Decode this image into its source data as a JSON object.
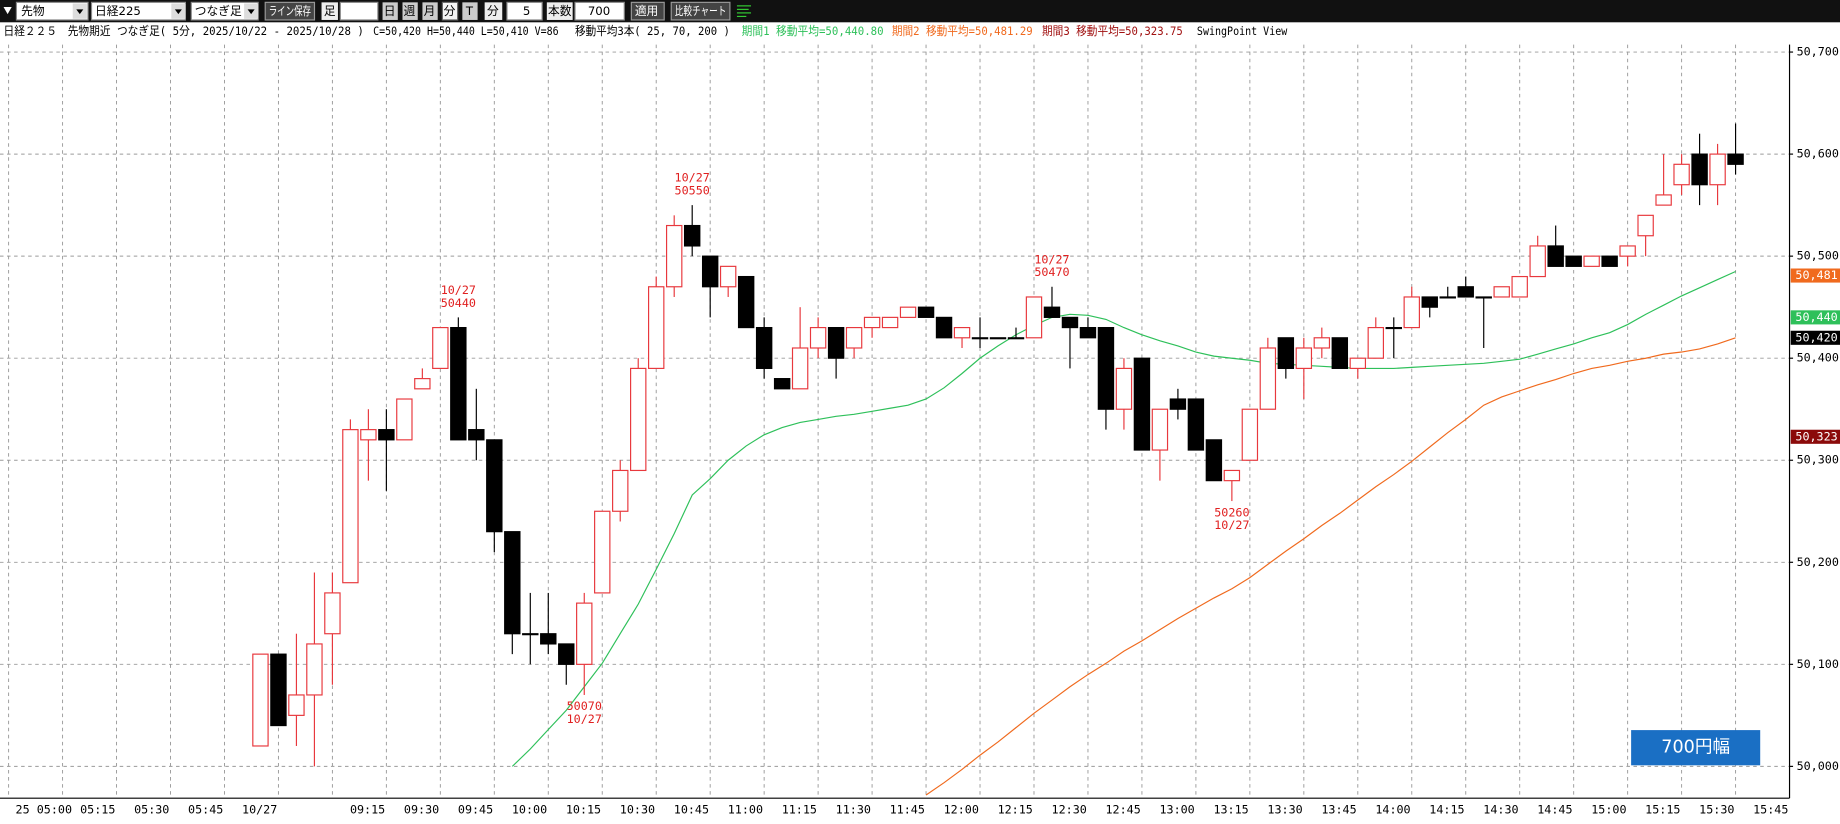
{
  "toolbar": {
    "market": "先物",
    "symbol": "日経225",
    "chart_kind": "つなぎ足",
    "save_lines": "ライン保存",
    "bar_label": "足",
    "periods": [
      "日",
      "週",
      "月",
      "分",
      "T"
    ],
    "unit": "分",
    "interval": "5",
    "count_label": "本数",
    "count": "700",
    "apply": "適用",
    "compare": "比較チャート"
  },
  "chart_data": {
    "type": "candlestick",
    "title": "日経２２５　先物期近 つなぎ足( 5分, 2025/10/22 - 2025/10/28 )",
    "subtitle": "C=50,420 H=50,440 L=50,410 V=86",
    "ma_label": "移動平均3本( 25, 70, 200 )",
    "view_label": "SwingPoint View",
    "badge": "700円幅",
    "categories": [
      null,
      null,
      null,
      "25 05:00",
      null,
      null,
      "05:15",
      null,
      null,
      "05:30",
      null,
      null,
      "05:45",
      null,
      null,
      "10/27",
      null,
      null,
      null,
      null,
      null,
      "09:15",
      null,
      null,
      "09:30",
      null,
      null,
      "09:45",
      null,
      null,
      "10:00",
      null,
      null,
      "10:15",
      null,
      null,
      "10:30",
      null,
      null,
      "10:45",
      null,
      null,
      "11:00",
      null,
      null,
      "11:15",
      null,
      null,
      "11:30",
      null,
      null,
      "11:45",
      null,
      null,
      "12:00",
      null,
      null,
      "12:15",
      null,
      null,
      "12:30",
      null,
      null,
      "12:45",
      null,
      null,
      "13:00",
      null,
      null,
      "13:15",
      null,
      null,
      "13:30",
      null,
      null,
      "13:45",
      null,
      null,
      "14:00",
      null,
      null,
      "14:15",
      null,
      null,
      "14:30",
      null,
      null,
      "14:45",
      null,
      null,
      "15:00",
      null,
      null,
      "15:15",
      null,
      null,
      "15:30",
      null,
      null,
      "15:45"
    ],
    "open": [
      null,
      null,
      null,
      null,
      null,
      null,
      null,
      null,
      null,
      null,
      null,
      null,
      null,
      null,
      50020,
      50110,
      50050,
      50070,
      50130,
      50180,
      50320,
      50330,
      50320,
      50370,
      50390,
      50430,
      50330,
      50320,
      50230,
      50130,
      50130,
      50120,
      50100,
      50170,
      50250,
      50290,
      50390,
      50470,
      50530,
      50500,
      50470,
      50480,
      50430,
      50380,
      50370,
      50410,
      50430,
      50410,
      50430,
      50430,
      50440,
      50450,
      50440,
      50420,
      50420,
      50420,
      50420,
      50420,
      50450,
      50440,
      50430,
      50430,
      50350,
      50400,
      50310,
      50360,
      50360,
      50320,
      50280,
      50300,
      50350,
      50420,
      50390,
      50410,
      50420,
      50390,
      50400,
      50430,
      50430,
      50460,
      50460,
      50470,
      50460,
      50460,
      50460,
      50480,
      50510,
      50500,
      50490,
      50500,
      50500,
      50520,
      50550,
      50570,
      50600,
      50570,
      50600,
      null,
      null,
      null
    ],
    "high": [
      null,
      null,
      null,
      null,
      null,
      null,
      null,
      null,
      null,
      null,
      null,
      null,
      null,
      null,
      50110,
      50110,
      50130,
      50190,
      50190,
      50340,
      50350,
      50350,
      50360,
      50390,
      50430,
      50440,
      50370,
      50320,
      50230,
      50170,
      50170,
      50120,
      50170,
      50250,
      50300,
      50400,
      50480,
      50540,
      50550,
      50500,
      50490,
      50480,
      50440,
      50380,
      50450,
      50440,
      50430,
      50430,
      50440,
      50440,
      50450,
      50450,
      50440,
      50430,
      50440,
      50420,
      50430,
      50460,
      50470,
      50440,
      50440,
      50430,
      50400,
      50400,
      50350,
      50370,
      50360,
      50320,
      50290,
      50350,
      50420,
      50420,
      50420,
      50430,
      50420,
      50400,
      50440,
      50440,
      50470,
      50460,
      50470,
      50480,
      50460,
      50470,
      50480,
      50520,
      50530,
      50500,
      50500,
      50500,
      50510,
      50540,
      50600,
      50600,
      50620,
      50610,
      50630,
      null,
      null,
      null
    ],
    "low": [
      null,
      null,
      null,
      null,
      null,
      null,
      null,
      null,
      null,
      null,
      null,
      null,
      null,
      null,
      50020,
      50040,
      50020,
      50000,
      50080,
      50180,
      50280,
      50270,
      50320,
      50370,
      50390,
      50320,
      50300,
      50210,
      50110,
      50100,
      50110,
      50080,
      50070,
      50170,
      50240,
      50290,
      50390,
      50460,
      50500,
      50440,
      50460,
      50430,
      50380,
      50370,
      50370,
      50400,
      50380,
      50400,
      50420,
      50430,
      50440,
      50440,
      50420,
      50410,
      50410,
      50420,
      50420,
      50420,
      50440,
      50390,
      50420,
      50330,
      50330,
      50310,
      50280,
      50340,
      50310,
      50280,
      50260,
      50300,
      50350,
      50380,
      50360,
      50400,
      50390,
      50380,
      50400,
      50400,
      50430,
      50440,
      50460,
      50460,
      50410,
      50460,
      50460,
      50480,
      50490,
      50490,
      50490,
      50490,
      50490,
      50500,
      50550,
      50560,
      50550,
      50550,
      50580,
      null,
      null,
      null
    ],
    "close": [
      null,
      null,
      null,
      null,
      null,
      null,
      null,
      null,
      null,
      null,
      null,
      null,
      null,
      null,
      50110,
      50040,
      50070,
      50120,
      50170,
      50330,
      50330,
      50320,
      50360,
      50380,
      50430,
      50320,
      50320,
      50230,
      50130,
      50130,
      50120,
      50100,
      50160,
      50250,
      50290,
      50390,
      50470,
      50530,
      50510,
      50470,
      50490,
      50430,
      50390,
      50370,
      50410,
      50430,
      50400,
      50430,
      50440,
      50440,
      50450,
      50440,
      50420,
      50430,
      50420,
      50420,
      50420,
      50460,
      50440,
      50430,
      50420,
      50350,
      50390,
      50310,
      50350,
      50350,
      50310,
      50280,
      50290,
      50350,
      50410,
      50390,
      50410,
      50420,
      50390,
      50400,
      50430,
      50430,
      50460,
      50450,
      50460,
      50460,
      50460,
      50470,
      50480,
      50510,
      50490,
      50490,
      50500,
      50490,
      50510,
      50540,
      50560,
      50590,
      50570,
      50600,
      50590,
      null,
      null,
      null
    ],
    "up_color": "#e8383d",
    "down_color": "#000000",
    "series": [
      {
        "name": "期間1 移動平均=50,440.80",
        "color": "#2ec05a",
        "values": [
          null,
          null,
          null,
          null,
          null,
          null,
          null,
          null,
          null,
          null,
          null,
          null,
          null,
          null,
          null,
          null,
          null,
          null,
          null,
          null,
          null,
          null,
          null,
          null,
          null,
          null,
          null,
          null,
          50000,
          50017,
          50036,
          50055,
          50078,
          50101,
          50130,
          50159,
          50193,
          50228,
          50266,
          50282,
          50300,
          50314,
          50325,
          50332,
          50337,
          50340,
          50343,
          50345,
          50348,
          50351,
          50354,
          50360,
          50371,
          50385,
          50400,
          50412,
          50423,
          50432,
          50440,
          50443,
          50442,
          50438,
          50430,
          50423,
          50417,
          50412,
          50406,
          50402,
          50400,
          50398,
          50395,
          50394,
          50393,
          50392,
          50391,
          50390,
          50390,
          50390,
          50391,
          50392,
          50393,
          50394,
          50395,
          50397,
          50399,
          50404,
          50409,
          50414,
          50420,
          50425,
          50433,
          50443,
          50452,
          50461,
          50469,
          50477,
          50485,
          null,
          null,
          null
        ]
      },
      {
        "name": "期間2 移動平均=50,481.29",
        "color": "#f06a1e",
        "values": [
          null,
          null,
          null,
          null,
          null,
          null,
          null,
          null,
          null,
          null,
          null,
          null,
          null,
          null,
          null,
          null,
          null,
          null,
          null,
          null,
          null,
          null,
          null,
          null,
          null,
          null,
          null,
          null,
          null,
          null,
          null,
          null,
          null,
          null,
          null,
          null,
          null,
          null,
          null,
          null,
          null,
          null,
          null,
          null,
          null,
          null,
          null,
          null,
          null,
          null,
          null,
          49972,
          49984,
          49997,
          50011,
          50024,
          50038,
          50052,
          50065,
          50078,
          50090,
          50101,
          50113,
          50123,
          50134,
          50145,
          50155,
          50165,
          50174,
          50185,
          50198,
          50211,
          50223,
          50236,
          50248,
          50261,
          50274,
          50286,
          50299,
          50313,
          50327,
          50340,
          50354,
          50362,
          50368,
          50374,
          50379,
          50385,
          50390,
          50393,
          50397,
          50400,
          50404,
          50406,
          50409,
          50414,
          50420,
          null,
          null,
          null
        ]
      },
      {
        "name": "期間3 移動平均=50,323.75",
        "color": "#a01010"
      }
    ],
    "ylim": [
      49970,
      50705
    ],
    "yticks": [
      {
        "value": 50000,
        "label": "50,000."
      },
      {
        "value": 50100,
        "label": "50,100."
      },
      {
        "value": 50200,
        "label": "50,200."
      },
      {
        "value": 50300,
        "label": "50,300."
      },
      {
        "value": 50400,
        "label": "50,400."
      },
      {
        "value": 50500,
        "label": "50,500."
      },
      {
        "value": 50600,
        "label": "50,600."
      },
      {
        "value": 50700,
        "label": "50,700."
      }
    ],
    "grid": true,
    "price_tags": [
      {
        "label": "50,481.",
        "value": 50481,
        "color": "#f06a1e"
      },
      {
        "label": "50,440.",
        "value": 50440,
        "color": "#2ec05a"
      },
      {
        "label": "50,420",
        "value": 50420,
        "color": "#000000"
      },
      {
        "label": "50,323.",
        "value": 50323,
        "color": "#8b0a0a"
      }
    ],
    "swing_points": [
      {
        "date": "10/27",
        "price": 50440,
        "kind": "high"
      },
      {
        "date": "10/27",
        "price": 50550,
        "kind": "high"
      },
      {
        "date": "10/27",
        "price": 50070,
        "kind": "low"
      },
      {
        "date": "10/27",
        "price": 50470,
        "kind": "high"
      },
      {
        "date": "10/27",
        "price": 50260,
        "kind": "low"
      }
    ],
    "swing_color": "#e02020"
  }
}
